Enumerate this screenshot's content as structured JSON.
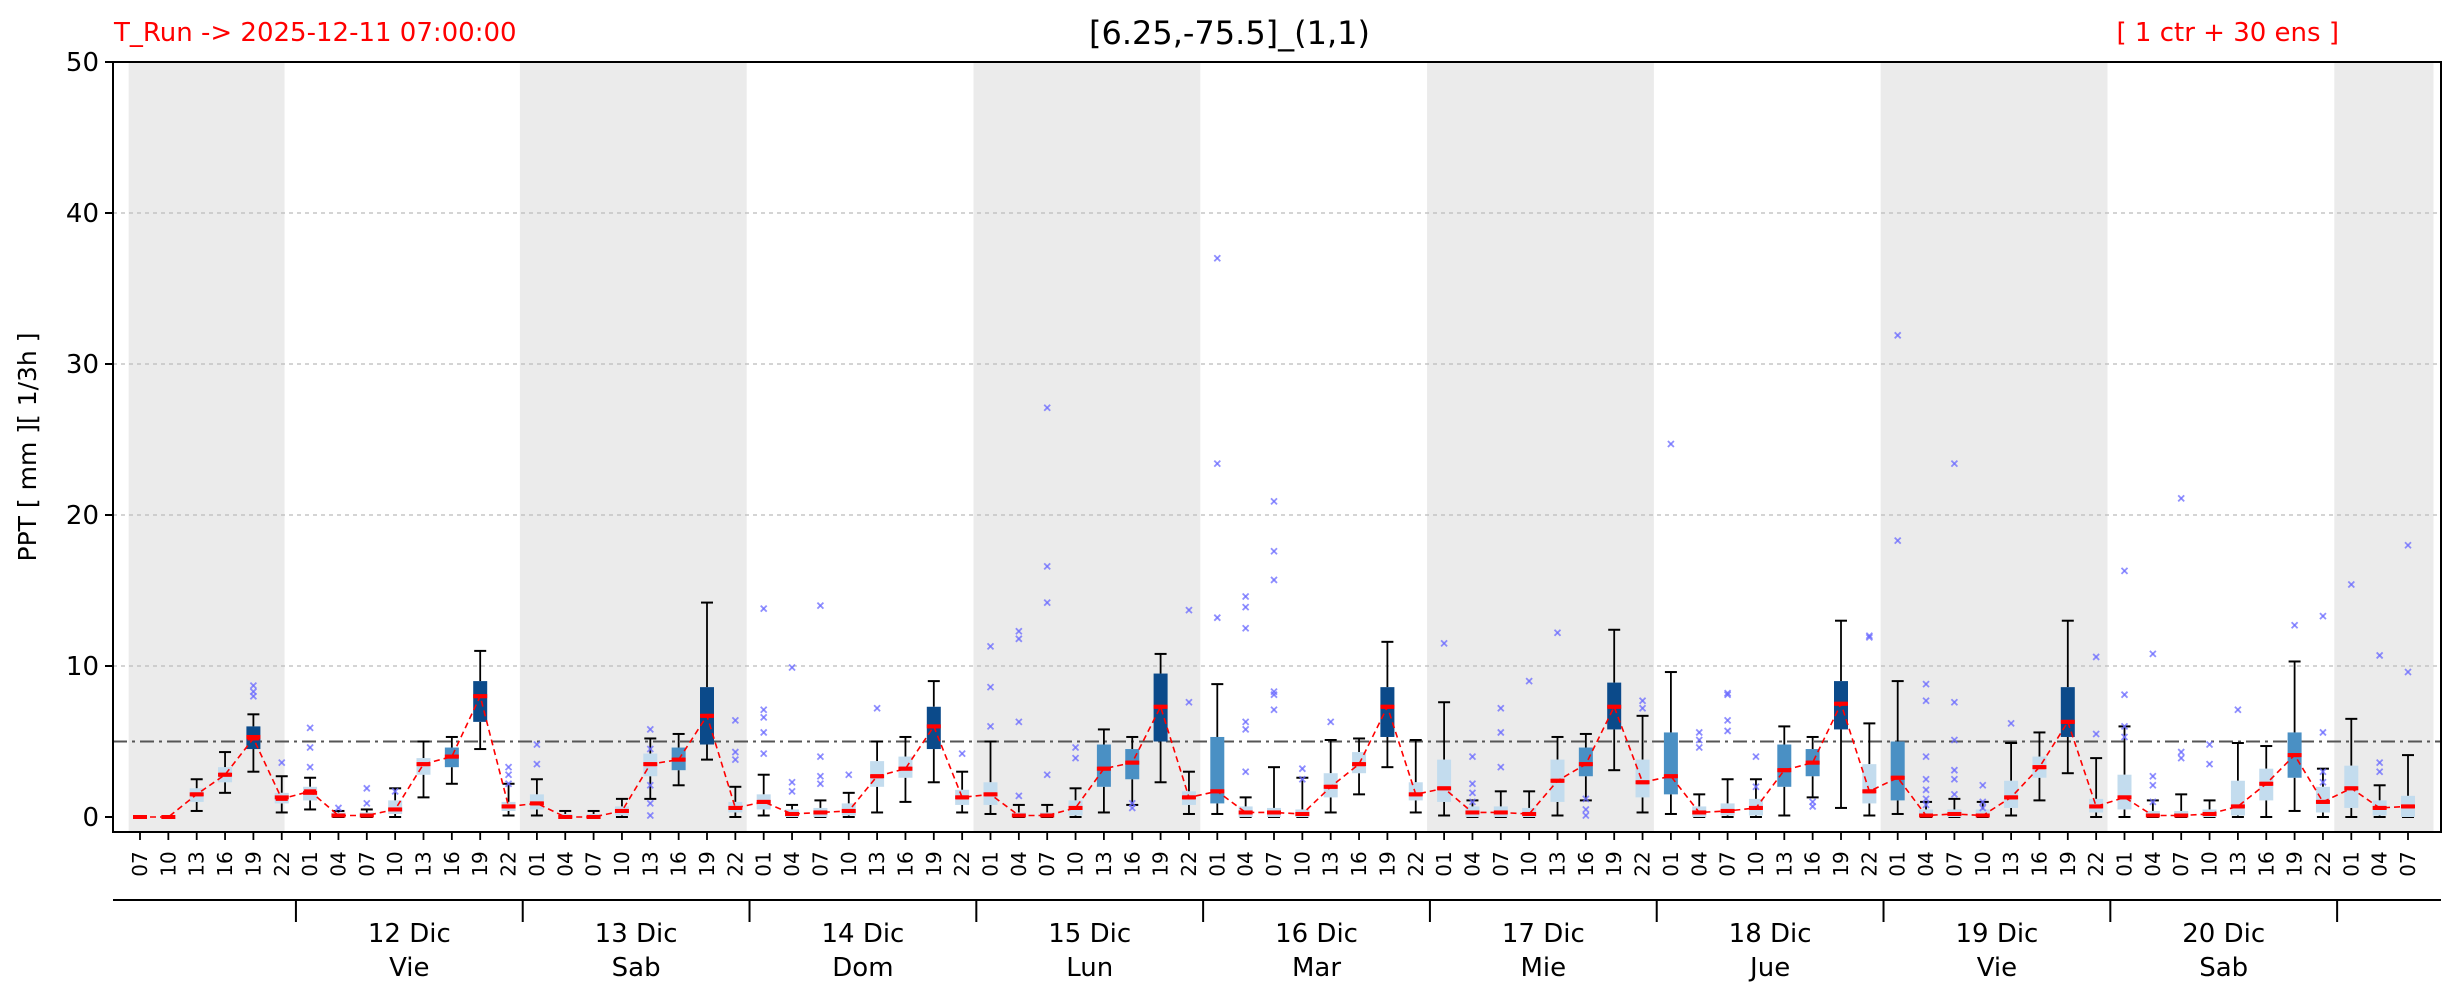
{
  "header": {
    "run_label": "T_Run -> 2025-12-11  07:00:00",
    "title": "[6.25,-75.5]_(1,1)",
    "ensemble_label": "[ 1 ctr + 30 ens ]"
  },
  "colors": {
    "night_band": "#ebebeb",
    "box_light": "#c3dcee",
    "box_mid": "#4a90c4",
    "box_dark": "#0b4a8a",
    "median": "#ff0000",
    "ctrl_line": "#ff0000",
    "outlier": "#6b6bff",
    "threshold": "#555555",
    "grid": "#bbbbbb"
  },
  "chart_data": {
    "type": "box",
    "ylabel": "PPT  [ mm ][ 1/3h ]",
    "ylim": [
      0,
      50
    ],
    "yticks": [
      0,
      10,
      20,
      30,
      40,
      50
    ],
    "threshold": 5,
    "grid": true,
    "x": [
      "07",
      "10",
      "13",
      "16",
      "19",
      "22",
      "01",
      "04",
      "07",
      "10",
      "13",
      "16",
      "19",
      "22",
      "01",
      "04",
      "07",
      "10",
      "13",
      "16",
      "19",
      "22",
      "01",
      "04",
      "07",
      "10",
      "13",
      "16",
      "19",
      "22",
      "01",
      "04",
      "07",
      "10",
      "13",
      "16",
      "19",
      "22",
      "01",
      "04",
      "07",
      "10",
      "13",
      "16",
      "19",
      "22",
      "01",
      "04",
      "07",
      "10",
      "13",
      "16",
      "19",
      "22",
      "01",
      "04",
      "07",
      "10",
      "13",
      "16",
      "19",
      "22",
      "01",
      "04",
      "07",
      "10",
      "13",
      "16",
      "19",
      "22",
      "01",
      "04",
      "07",
      "10",
      "13",
      "16",
      "19",
      "22",
      "01",
      "04",
      "07"
    ],
    "days": [
      {
        "date": "12 Dic",
        "weekday": "Vie"
      },
      {
        "date": "13 Dic",
        "weekday": "Sab"
      },
      {
        "date": "14 Dic",
        "weekday": "Dom"
      },
      {
        "date": "15 Dic",
        "weekday": "Lun"
      },
      {
        "date": "16 Dic",
        "weekday": "Mar"
      },
      {
        "date": "17 Dic",
        "weekday": "Mie"
      },
      {
        "date": "18 Dic",
        "weekday": "Jue"
      },
      {
        "date": "19 Dic",
        "weekday": "Vie"
      },
      {
        "date": "20 Dic",
        "weekday": "Sab"
      }
    ],
    "control": [
      0,
      0,
      1.5,
      2.8,
      5.2,
      1.2,
      1.7,
      0.1,
      0.1,
      0.5,
      3.5,
      4.0,
      8.0,
      0.7,
      0.9,
      0,
      0,
      0.4,
      3.5,
      3.8,
      6.7,
      0.6,
      1.0,
      0.2,
      0.3,
      0.4,
      2.7,
      3.2,
      6.0,
      1.3,
      1.5,
      0.1,
      0.1,
      0.6,
      3.2,
      3.6,
      7.3,
      1.3,
      1.7,
      0.3,
      0.3,
      0.2,
      2.0,
      3.5,
      7.3,
      1.5,
      1.9,
      0.3,
      0.3,
      0.2,
      2.4,
      3.5,
      7.3,
      2.3,
      2.7,
      0.3,
      0.4,
      0.6,
      3.1,
      3.6,
      7.5,
      1.7,
      2.6,
      0.1,
      0.2,
      0.1,
      1.3,
      3.3,
      6.3,
      0.7,
      1.3,
      0.1,
      0.1,
      0.2,
      0.7,
      2.2,
      4.1,
      1.0,
      1.9,
      0.6,
      0.7
    ],
    "boxes": [
      {
        "q1": 0,
        "q3": 0,
        "lo": 0,
        "hi": 0,
        "med": 0
      },
      {
        "q1": 0,
        "q3": 0,
        "lo": 0,
        "hi": 0,
        "med": 0
      },
      {
        "q1": 1.0,
        "q3": 1.9,
        "lo": 0.4,
        "hi": 2.5,
        "med": 1.5
      },
      {
        "q1": 2.3,
        "q3": 3.3,
        "lo": 1.6,
        "hi": 4.3,
        "med": 2.8
      },
      {
        "q1": 4.5,
        "q3": 6.0,
        "lo": 3.0,
        "hi": 6.8,
        "med": 5.3
      },
      {
        "q1": 0.9,
        "q3": 1.6,
        "lo": 0.3,
        "hi": 2.7,
        "med": 1.3
      },
      {
        "q1": 1.1,
        "q3": 2.0,
        "lo": 0.5,
        "hi": 2.6,
        "med": 1.6
      },
      {
        "q1": 0,
        "q3": 0.3,
        "lo": 0,
        "hi": 0.4,
        "med": 0.1
      },
      {
        "q1": 0,
        "q3": 0.3,
        "lo": 0,
        "hi": 0.5,
        "med": 0.1
      },
      {
        "q1": 0.2,
        "q3": 1.1,
        "lo": 0,
        "hi": 1.9,
        "med": 0.5
      },
      {
        "q1": 2.8,
        "q3": 3.9,
        "lo": 1.3,
        "hi": 5.0,
        "med": 3.5
      },
      {
        "q1": 3.3,
        "q3": 4.6,
        "lo": 2.2,
        "hi": 5.3,
        "med": 4.0
      },
      {
        "q1": 6.3,
        "q3": 9.0,
        "lo": 4.5,
        "hi": 11.0,
        "med": 8.0
      },
      {
        "q1": 0.4,
        "q3": 1.0,
        "lo": 0.1,
        "hi": 2.2,
        "med": 0.7
      },
      {
        "q1": 0.5,
        "q3": 1.5,
        "lo": 0.1,
        "hi": 2.5,
        "med": 0.9
      },
      {
        "q1": 0,
        "q3": 0.2,
        "lo": 0,
        "hi": 0.4,
        "med": 0
      },
      {
        "q1": 0,
        "q3": 0.2,
        "lo": 0,
        "hi": 0.4,
        "med": 0
      },
      {
        "q1": 0.1,
        "q3": 0.7,
        "lo": 0,
        "hi": 1.2,
        "med": 0.4
      },
      {
        "q1": 2.7,
        "q3": 4.2,
        "lo": 1.2,
        "hi": 5.2,
        "med": 3.5
      },
      {
        "q1": 3.1,
        "q3": 4.6,
        "lo": 2.1,
        "hi": 5.5,
        "med": 3.8
      },
      {
        "q1": 4.8,
        "q3": 8.6,
        "lo": 3.8,
        "hi": 14.2,
        "med": 6.7
      },
      {
        "q1": 0.3,
        "q3": 1.0,
        "lo": 0,
        "hi": 2.0,
        "med": 0.6
      },
      {
        "q1": 0.5,
        "q3": 1.5,
        "lo": 0.1,
        "hi": 2.8,
        "med": 1.0
      },
      {
        "q1": 0,
        "q3": 0.5,
        "lo": 0,
        "hi": 0.8,
        "med": 0.2
      },
      {
        "q1": 0,
        "q3": 0.6,
        "lo": 0,
        "hi": 1.1,
        "med": 0.3
      },
      {
        "q1": 0.1,
        "q3": 0.9,
        "lo": 0,
        "hi": 1.6,
        "med": 0.4
      },
      {
        "q1": 2.0,
        "q3": 3.7,
        "lo": 0.3,
        "hi": 5.0,
        "med": 2.7
      },
      {
        "q1": 2.6,
        "q3": 4.0,
        "lo": 1.0,
        "hi": 5.3,
        "med": 3.2
      },
      {
        "q1": 4.5,
        "q3": 7.3,
        "lo": 2.3,
        "hi": 9.0,
        "med": 6.0
      },
      {
        "q1": 0.8,
        "q3": 1.8,
        "lo": 0.3,
        "hi": 3.0,
        "med": 1.3
      },
      {
        "q1": 0.8,
        "q3": 2.3,
        "lo": 0.2,
        "hi": 5.0,
        "med": 1.5
      },
      {
        "q1": 0,
        "q3": 0.3,
        "lo": 0,
        "hi": 0.8,
        "med": 0.1
      },
      {
        "q1": 0,
        "q3": 0.3,
        "lo": 0,
        "hi": 0.8,
        "med": 0.1
      },
      {
        "q1": 0.1,
        "q3": 1.1,
        "lo": 0,
        "hi": 1.9,
        "med": 0.6
      },
      {
        "q1": 2.0,
        "q3": 4.8,
        "lo": 0.3,
        "hi": 5.8,
        "med": 3.2
      },
      {
        "q1": 2.5,
        "q3": 4.5,
        "lo": 0.8,
        "hi": 5.3,
        "med": 3.6
      },
      {
        "q1": 5.0,
        "q3": 9.5,
        "lo": 2.3,
        "hi": 10.8,
        "med": 7.3
      },
      {
        "q1": 0.8,
        "q3": 1.7,
        "lo": 0.2,
        "hi": 3.0,
        "med": 1.3
      },
      {
        "q1": 0.9,
        "q3": 5.3,
        "lo": 0.2,
        "hi": 8.8,
        "med": 1.7
      },
      {
        "q1": 0,
        "q3": 0.7,
        "lo": 0,
        "hi": 1.3,
        "med": 0.3
      },
      {
        "q1": 0,
        "q3": 0.6,
        "lo": 0,
        "hi": 3.3,
        "med": 0.3
      },
      {
        "q1": 0,
        "q3": 0.5,
        "lo": 0,
        "hi": 2.6,
        "med": 0.2
      },
      {
        "q1": 1.3,
        "q3": 2.9,
        "lo": 0.3,
        "hi": 5.1,
        "med": 2.0
      },
      {
        "q1": 2.9,
        "q3": 4.3,
        "lo": 1.5,
        "hi": 5.2,
        "med": 3.5
      },
      {
        "q1": 5.3,
        "q3": 8.6,
        "lo": 3.3,
        "hi": 11.6,
        "med": 7.3
      },
      {
        "q1": 1.1,
        "q3": 2.3,
        "lo": 0.3,
        "hi": 5.1,
        "med": 1.5
      },
      {
        "q1": 1.0,
        "q3": 3.8,
        "lo": 0.1,
        "hi": 7.6,
        "med": 1.9
      },
      {
        "q1": 0,
        "q3": 0.7,
        "lo": 0,
        "hi": 1.1,
        "med": 0.3
      },
      {
        "q1": 0,
        "q3": 0.7,
        "lo": 0,
        "hi": 1.7,
        "med": 0.3
      },
      {
        "q1": 0,
        "q3": 0.6,
        "lo": 0,
        "hi": 1.7,
        "med": 0.2
      },
      {
        "q1": 1.0,
        "q3": 3.8,
        "lo": 0.1,
        "hi": 5.3,
        "med": 2.4
      },
      {
        "q1": 2.7,
        "q3": 4.6,
        "lo": 1.1,
        "hi": 5.5,
        "med": 3.5
      },
      {
        "q1": 5.8,
        "q3": 8.9,
        "lo": 3.1,
        "hi": 12.4,
        "med": 7.3
      },
      {
        "q1": 1.3,
        "q3": 3.8,
        "lo": 0.3,
        "hi": 6.7,
        "med": 2.3
      },
      {
        "q1": 1.5,
        "q3": 5.6,
        "lo": 0.2,
        "hi": 9.6,
        "med": 2.7
      },
      {
        "q1": 0,
        "q3": 0.7,
        "lo": 0,
        "hi": 1.5,
        "med": 0.3
      },
      {
        "q1": 0.1,
        "q3": 0.9,
        "lo": 0,
        "hi": 2.5,
        "med": 0.4
      },
      {
        "q1": 0.1,
        "q3": 1.2,
        "lo": 0,
        "hi": 2.5,
        "med": 0.6
      },
      {
        "q1": 2.0,
        "q3": 4.8,
        "lo": 0.1,
        "hi": 6.0,
        "med": 3.1
      },
      {
        "q1": 2.7,
        "q3": 4.5,
        "lo": 1.3,
        "hi": 5.3,
        "med": 3.6
      },
      {
        "q1": 5.8,
        "q3": 9.0,
        "lo": 0.6,
        "hi": 13.0,
        "med": 7.5
      },
      {
        "q1": 0.9,
        "q3": 3.5,
        "lo": 0.1,
        "hi": 6.2,
        "med": 1.7
      },
      {
        "q1": 1.1,
        "q3": 5.0,
        "lo": 0.2,
        "hi": 9.0,
        "med": 2.6
      },
      {
        "q1": 0,
        "q3": 0.5,
        "lo": 0,
        "hi": 1.0,
        "med": 0.1
      },
      {
        "q1": 0,
        "q3": 0.5,
        "lo": 0,
        "hi": 1.2,
        "med": 0.2
      },
      {
        "q1": 0,
        "q3": 0.5,
        "lo": 0,
        "hi": 1.0,
        "med": 0.1
      },
      {
        "q1": 0.6,
        "q3": 2.4,
        "lo": 0.1,
        "hi": 4.9,
        "med": 1.3
      },
      {
        "q1": 2.6,
        "q3": 4.0,
        "lo": 1.1,
        "hi": 5.6,
        "med": 3.3
      },
      {
        "q1": 5.3,
        "q3": 8.6,
        "lo": 2.9,
        "hi": 13.0,
        "med": 6.3
      },
      {
        "q1": 0.3,
        "q3": 1.2,
        "lo": 0,
        "hi": 3.9,
        "med": 0.7
      },
      {
        "q1": 0.5,
        "q3": 2.8,
        "lo": 0,
        "hi": 6.0,
        "med": 1.3
      },
      {
        "q1": 0,
        "q3": 0.4,
        "lo": 0,
        "hi": 1.1,
        "med": 0.1
      },
      {
        "q1": 0,
        "q3": 0.4,
        "lo": 0,
        "hi": 1.5,
        "med": 0.1
      },
      {
        "q1": 0,
        "q3": 0.5,
        "lo": 0,
        "hi": 1.1,
        "med": 0.2
      },
      {
        "q1": 0.1,
        "q3": 2.4,
        "lo": 0,
        "hi": 4.9,
        "med": 0.7
      },
      {
        "q1": 1.1,
        "q3": 3.2,
        "lo": 0,
        "hi": 4.7,
        "med": 2.2
      },
      {
        "q1": 2.6,
        "q3": 5.6,
        "lo": 0.4,
        "hi": 10.3,
        "med": 4.1
      },
      {
        "q1": 0.3,
        "q3": 2.0,
        "lo": 0,
        "hi": 3.2,
        "med": 1.0
      },
      {
        "q1": 0.6,
        "q3": 3.4,
        "lo": 0,
        "hi": 6.5,
        "med": 1.9
      },
      {
        "q1": 0.1,
        "q3": 1.1,
        "lo": 0,
        "hi": 2.1,
        "med": 0.6
      },
      {
        "q1": 0,
        "q3": 1.4,
        "lo": 0,
        "hi": 4.1,
        "med": 0.7
      }
    ],
    "outliers": [
      [],
      [],
      [],
      [],
      [
        8.3,
        8.7,
        8.0
      ],
      [
        3.6
      ],
      [
        5.9,
        4.6,
        3.3
      ],
      [
        0.6
      ],
      [
        1.9,
        0.9
      ],
      [
        1.7
      ],
      [],
      [],
      [],
      [
        3.3,
        2.8,
        2.2
      ],
      [
        4.8,
        3.5
      ],
      [],
      [],
      [],
      [
        5.8,
        4.5,
        2.1,
        0.9,
        0.1
      ],
      [],
      [],
      [
        6.4,
        4.3,
        3.8
      ],
      [
        13.8,
        7.1,
        6.6,
        5.6,
        4.2
      ],
      [
        9.9,
        2.3,
        1.7
      ],
      [
        14.0,
        4.0,
        2.7,
        2.2
      ],
      [
        2.8
      ],
      [
        7.2
      ],
      [],
      [],
      [
        4.2
      ],
      [
        11.3,
        8.6,
        6.0
      ],
      [
        12.3,
        11.8,
        6.3,
        1.4
      ],
      [
        27.1,
        16.6,
        14.2,
        2.8
      ],
      [
        4.6,
        3.9
      ],
      [],
      [
        0.9,
        0.6
      ],
      [],
      [
        13.7,
        7.6
      ],
      [
        37.0,
        23.4,
        13.2
      ],
      [
        14.6,
        13.9,
        12.5,
        6.3,
        5.8,
        3.0
      ],
      [
        20.9,
        17.6,
        15.7,
        8.3,
        8.1,
        7.1
      ],
      [
        3.2,
        2.5
      ],
      [
        6.3
      ],
      [],
      [],
      [],
      [
        11.5
      ],
      [
        4.0,
        2.2,
        1.6,
        1.0
      ],
      [
        7.2,
        5.6,
        3.3
      ],
      [
        9.0
      ],
      [
        12.2
      ],
      [
        1.2,
        0.5,
        0.1
      ],
      [],
      [
        7.7,
        7.2
      ],
      [
        24.7
      ],
      [
        5.6,
        5.1,
        4.6
      ],
      [
        8.2,
        8.1,
        6.4,
        5.7
      ],
      [
        4.0,
        2.0
      ],
      [],
      [
        1.0,
        0.7
      ],
      [],
      [
        12.0,
        11.9
      ],
      [
        31.9,
        18.3
      ],
      [
        8.8,
        7.7,
        4.0,
        2.5,
        1.8,
        1.2,
        0.8
      ],
      [
        23.4,
        7.6,
        5.1,
        3.1,
        2.5,
        1.5
      ],
      [
        2.1,
        1.0,
        0.6
      ],
      [
        6.2
      ],
      [],
      [],
      [
        10.6,
        5.5
      ],
      [
        16.3,
        8.1,
        6.0,
        5.3
      ],
      [
        10.8,
        2.7,
        2.1,
        1.0
      ],
      [
        21.1,
        4.3,
        3.9
      ],
      [
        4.8,
        3.5
      ],
      [
        7.1
      ],
      [],
      [
        12.7
      ],
      [
        13.3,
        5.6,
        3.0,
        2.3
      ],
      [
        15.4
      ],
      [
        10.7,
        3.6,
        3.0
      ],
      [
        18.0,
        9.6
      ]
    ]
  }
}
